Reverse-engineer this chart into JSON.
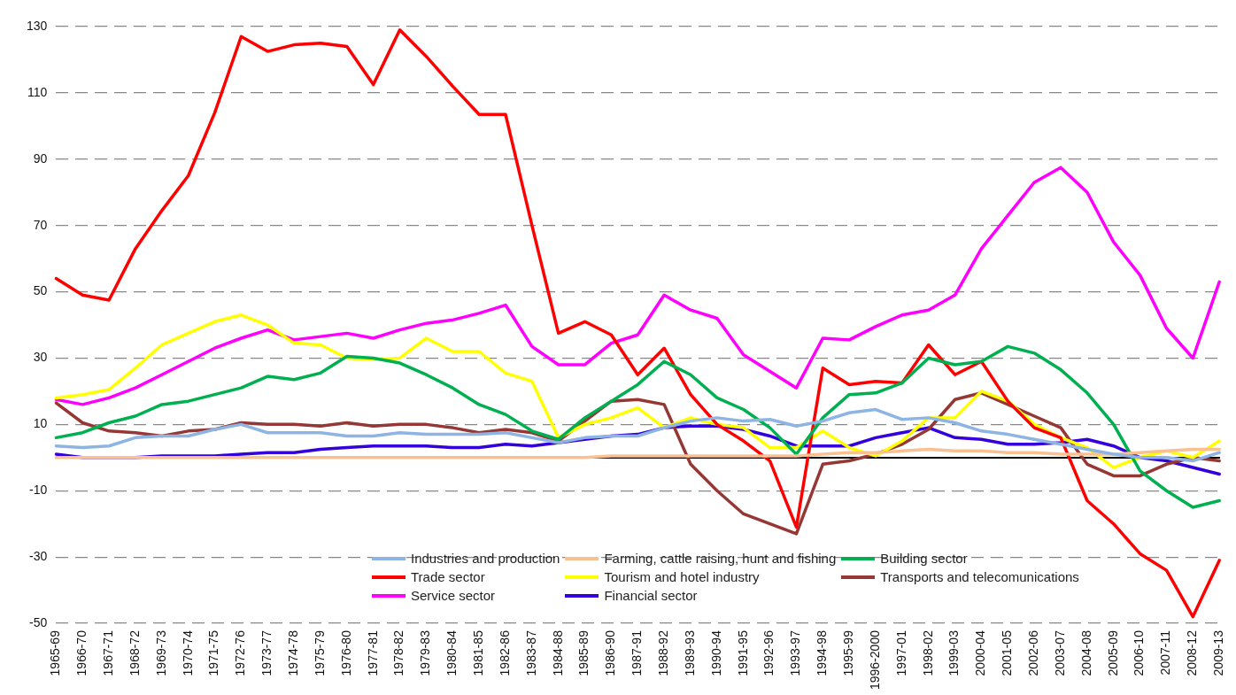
{
  "chart_data": {
    "type": "line",
    "categories": [
      "1965-69",
      "1966-70",
      "1967-71",
      "1968-72",
      "1969-73",
      "1970-74",
      "1971-75",
      "1972-76",
      "1973-77",
      "1974-78",
      "1975-79",
      "1976-80",
      "1977-81",
      "1978-82",
      "1979-83",
      "1980-84",
      "1981-85",
      "1982-86",
      "1983-87",
      "1984-88",
      "1985-89",
      "1986-90",
      "1987-91",
      "1988-92",
      "1989-93",
      "1990-94",
      "1991-95",
      "1992-96",
      "1993-97",
      "1994-98",
      "1995-99",
      "1996-2000",
      "1997-01",
      "1998-02",
      "1999-03",
      "2000-04",
      "2001-05",
      "2002-06",
      "2003-07",
      "2004-08",
      "2005-09",
      "2006-10",
      "2007-11",
      "2008-12",
      "2009-13"
    ],
    "series": [
      {
        "name": "Industries and production",
        "color": "#8db4e2",
        "values": [
          3.5,
          3,
          3.5,
          6,
          6.5,
          6.5,
          8.5,
          10,
          7.5,
          7.5,
          7.5,
          6.5,
          6.5,
          7.5,
          7,
          7,
          7,
          7.5,
          6,
          4.5,
          6,
          6.5,
          6.5,
          9,
          11,
          12,
          11,
          11.5,
          9.5,
          11,
          13.5,
          14.5,
          11.5,
          12,
          10.5,
          8,
          7,
          5.5,
          4,
          2.5,
          1,
          0,
          0,
          -1,
          1.5
        ]
      },
      {
        "name": "Farming, cattle raising, hunt and fishing",
        "color": "#fac090",
        "values": [
          0,
          0,
          0,
          0,
          0,
          0,
          0,
          0,
          0,
          0,
          0,
          0,
          0,
          0,
          0,
          0,
          0,
          0,
          0,
          0,
          0,
          0.5,
          0.5,
          0.5,
          0.5,
          0.5,
          0.5,
          0.5,
          0.5,
          1,
          1.5,
          1.5,
          2,
          2.5,
          2,
          2,
          1.5,
          1.5,
          1,
          1,
          1,
          1.5,
          2,
          2.5,
          2.5
        ]
      },
      {
        "name": "Building sector",
        "color": "#00b050",
        "values": [
          6,
          7.5,
          10.5,
          12.5,
          16,
          17,
          19,
          21,
          24.5,
          23.5,
          25.5,
          30.5,
          30,
          28.5,
          25,
          21,
          16,
          13,
          8,
          5.5,
          12,
          17,
          22,
          29,
          25,
          18,
          14.5,
          9,
          1,
          12,
          19,
          19.5,
          22.5,
          30,
          28,
          29,
          33.5,
          31.5,
          26.5,
          19.5,
          10,
          -4,
          -10,
          -15,
          -13
        ]
      },
      {
        "name": "Trade sector",
        "color": "#ff0000",
        "values": [
          54,
          49,
          47.5,
          63,
          74.5,
          85,
          104,
          127,
          122.5,
          124.5,
          125,
          124,
          112.5,
          129,
          121,
          112,
          103.5,
          103.5,
          70,
          37.5,
          41,
          37,
          25,
          33,
          19,
          10,
          5,
          -1,
          -21,
          27,
          22,
          23,
          22.5,
          34,
          25,
          29,
          17,
          9,
          6,
          -13,
          -20,
          -29,
          -34,
          -48,
          -31
        ]
      },
      {
        "name": "Tourism and hotel industry",
        "color": "#ffff00",
        "values": [
          18,
          19,
          20.5,
          27,
          34,
          37.5,
          41,
          43,
          40,
          34.5,
          34,
          30,
          29.5,
          30,
          36,
          32,
          32,
          25.5,
          23,
          6,
          10,
          12,
          15,
          9,
          12,
          10,
          9,
          3,
          3,
          8,
          3,
          0.5,
          5,
          12,
          12,
          20,
          17,
          10,
          6,
          3,
          -3,
          0,
          2,
          0,
          5
        ]
      },
      {
        "name": "Transports and telecomunications",
        "color": "#953735",
        "values": [
          16.5,
          10.5,
          8,
          7.5,
          6.5,
          8,
          8.5,
          10.5,
          10,
          10,
          9.5,
          10.5,
          9.5,
          10,
          10,
          9,
          7.5,
          8.5,
          7.5,
          5,
          11,
          17,
          17.5,
          16,
          -2,
          -10,
          -17,
          -20,
          -23,
          -2,
          -1,
          1,
          4,
          8.5,
          17.5,
          19.5,
          16,
          12.5,
          9,
          -2,
          -5.5,
          -5.5,
          -2,
          0,
          -1
        ]
      },
      {
        "name": "Service sector",
        "color": "#ff00ff",
        "values": [
          17.5,
          16,
          18,
          21,
          25,
          29,
          33,
          36,
          38.5,
          35.5,
          36.5,
          37.5,
          36,
          38.5,
          40.5,
          41.5,
          43.5,
          46,
          33.5,
          28,
          28,
          34.5,
          37,
          49,
          44.5,
          42,
          31,
          26,
          21,
          36,
          35.5,
          39.5,
          43,
          44.5,
          49,
          63,
          73,
          83,
          87.5,
          80,
          65,
          55,
          39,
          30,
          53
        ]
      },
      {
        "name": "Financial sector",
        "color": "#3300dd",
        "values": [
          1,
          0,
          0,
          0,
          0.5,
          0.5,
          0.5,
          1,
          1.5,
          1.5,
          2.5,
          3,
          3.5,
          3.5,
          3.5,
          3,
          3,
          4,
          3.5,
          4.5,
          5.5,
          6.5,
          7,
          9,
          9.5,
          9.5,
          8.5,
          6.5,
          3.5,
          3.5,
          3.5,
          6,
          7.5,
          9,
          6,
          5.5,
          4,
          4,
          4.5,
          5.5,
          3.5,
          0,
          -1,
          -3,
          -5
        ]
      }
    ],
    "ylim": [
      -50,
      130
    ],
    "yticks": [
      -50,
      -30,
      -10,
      10,
      30,
      50,
      70,
      90,
      110,
      130
    ],
    "grid": "y",
    "legend": "bottom right"
  }
}
